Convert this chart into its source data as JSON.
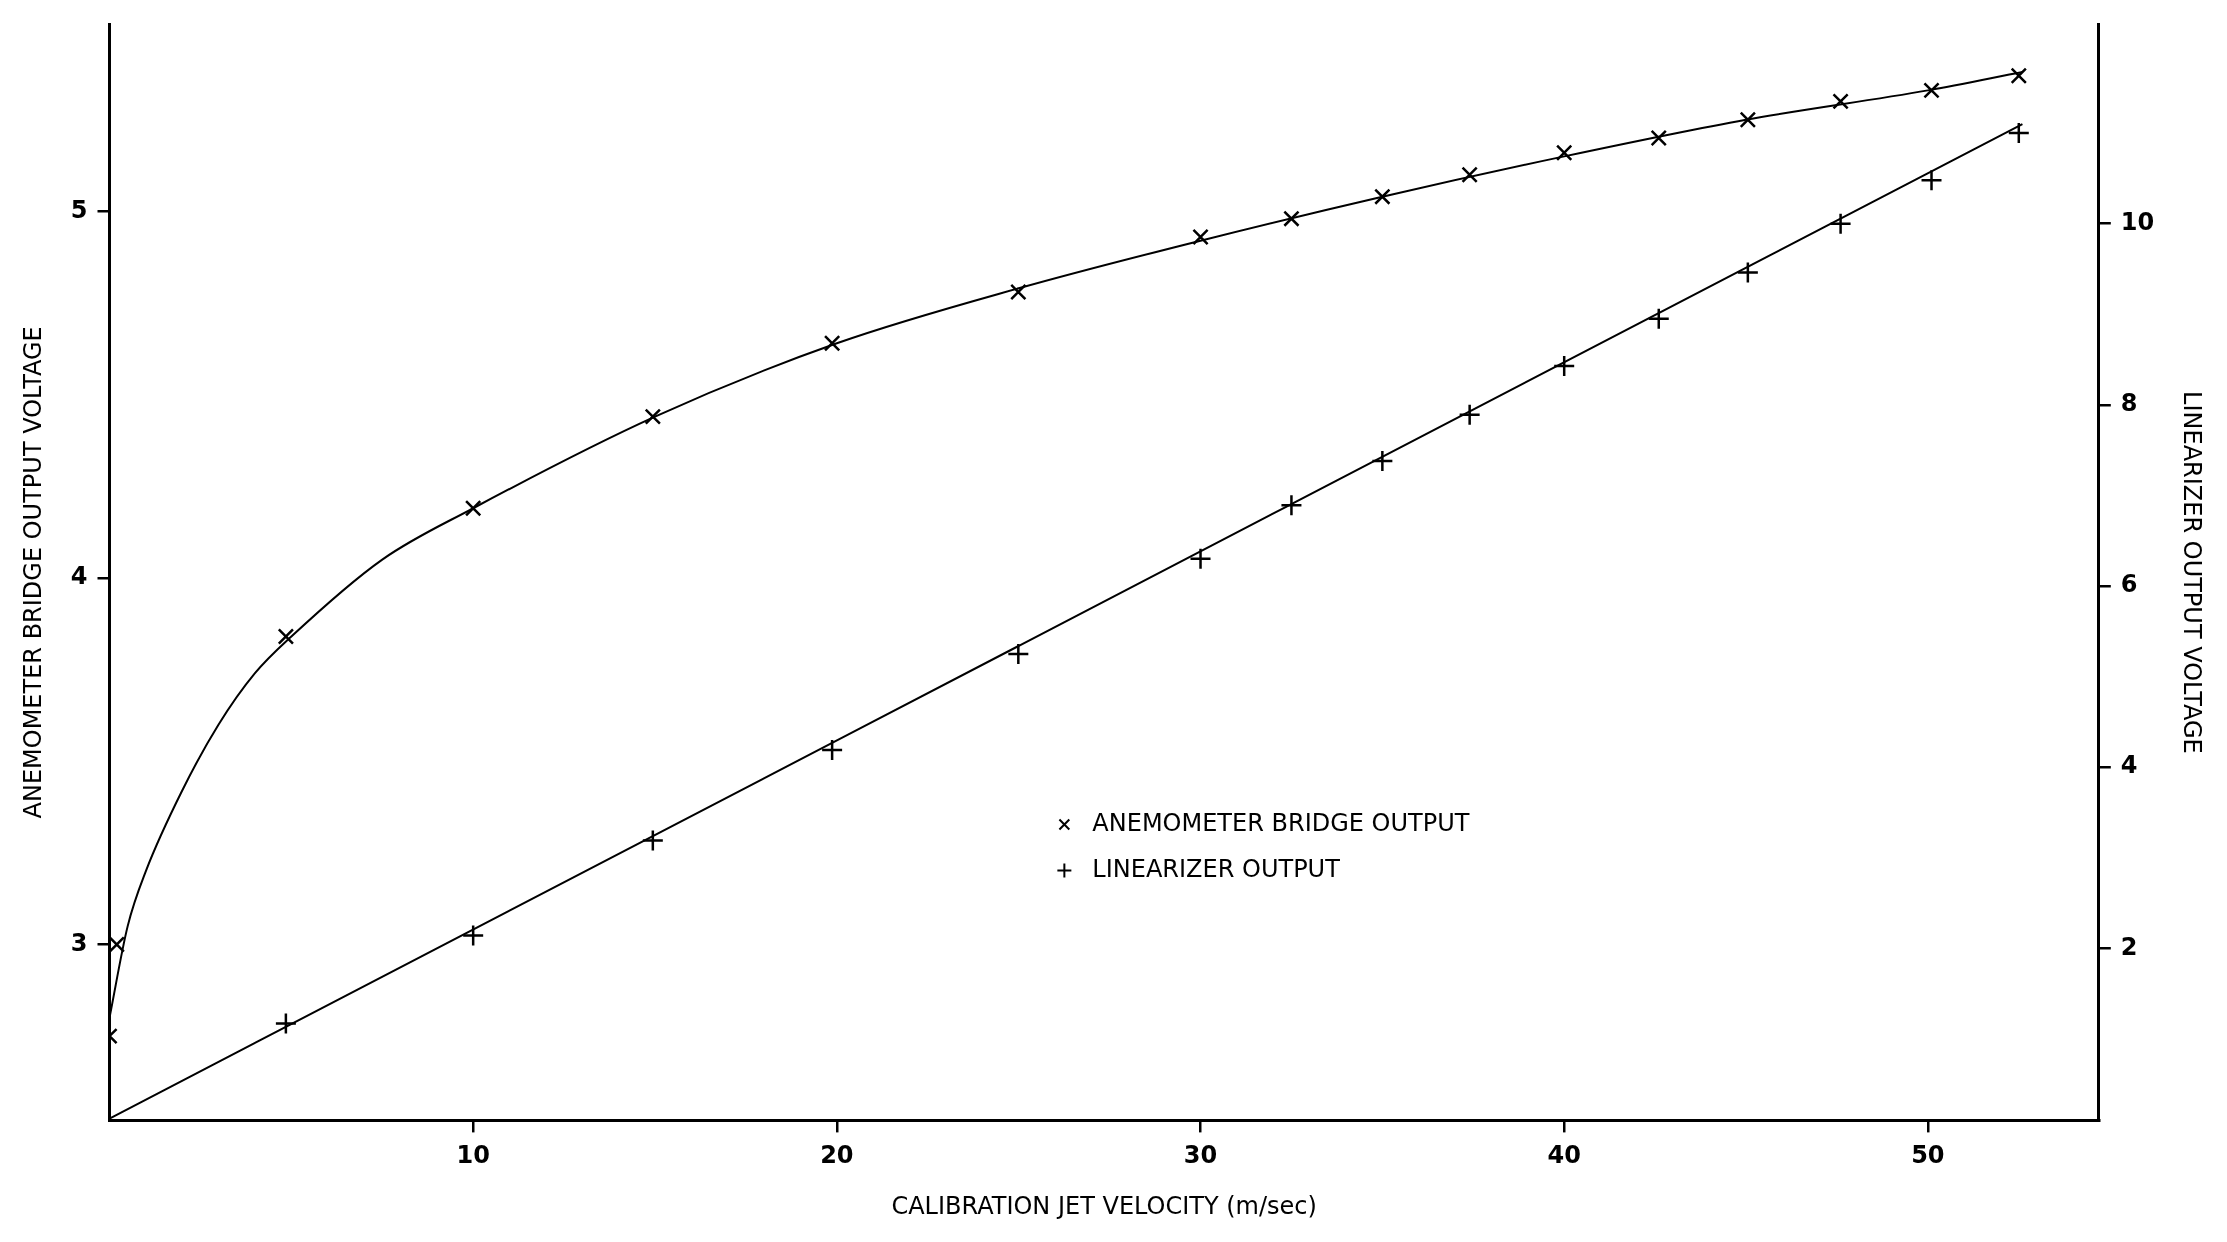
{
  "chart_data": {
    "type": "scatter",
    "xlabel": "CALIBRATION JET VELOCITY (m/sec)",
    "ylabel": "ANEMOMETER BRIDGE OUTPUT VOLTAGE",
    "y2label": "LINEARIZER OUTPUT VOLTAGE",
    "xlim": [
      0,
      54.7
    ],
    "xticks": [
      10,
      20,
      30,
      40,
      50
    ],
    "ylim": [
      2.52,
      5.51
    ],
    "yticks": [
      3,
      4,
      5
    ],
    "y2lim": [
      0.1,
      12.2
    ],
    "y2ticks": [
      2,
      4,
      6,
      8,
      10
    ],
    "grid": false,
    "legend": "bottom right",
    "series": [
      {
        "name": "ANEMOMETER BRIDGE OUTPUT",
        "marker": "cross",
        "color": "#000000",
        "x": [
          0,
          0.2,
          4.85,
          10,
          14.94,
          19.87,
          24.99,
          30,
          32.5,
          35,
          37.4,
          40,
          42.6,
          45.05,
          47.6,
          50.1,
          52.5
        ],
        "values": [
          2.75,
          3.0,
          3.84,
          4.19,
          4.44,
          4.64,
          4.78,
          4.93,
          4.98,
          5.04,
          5.1,
          5.16,
          5.2,
          5.25,
          5.3,
          5.33,
          5.37
        ]
      },
      {
        "name": "LINEARIZER OUTPUT",
        "marker": "plus",
        "axis": "y2",
        "color": "#000000",
        "x": [
          4.85,
          10,
          14.94,
          19.87,
          24.99,
          30,
          32.5,
          35,
          37.4,
          40,
          42.6,
          45.05,
          47.6,
          50.1,
          52.5
        ],
        "values": [
          1.17,
          2.14,
          3.19,
          4.19,
          5.25,
          6.3,
          6.89,
          7.38,
          7.89,
          8.43,
          8.95,
          9.46,
          10.0,
          10.48,
          11.0
        ]
      },
      {
        "type": "line",
        "marker": "none",
        "color": "#000000",
        "x": [
          0,
          0.5,
          1,
          2,
          3,
          4,
          5,
          7.5,
          10,
          15,
          20,
          25,
          30,
          35,
          40,
          45,
          50,
          52.6
        ],
        "values": [
          2.8,
          3.05,
          3.2,
          3.42,
          3.6,
          3.74,
          3.84,
          4.05,
          4.19,
          4.44,
          4.64,
          4.79,
          4.92,
          5.04,
          5.15,
          5.25,
          5.33,
          5.38
        ]
      },
      {
        "type": "line",
        "marker": "none",
        "axis": "y2",
        "color": "#000000",
        "x": [
          0,
          52.6
        ],
        "values": [
          0.12,
          11.1
        ]
      }
    ]
  }
}
